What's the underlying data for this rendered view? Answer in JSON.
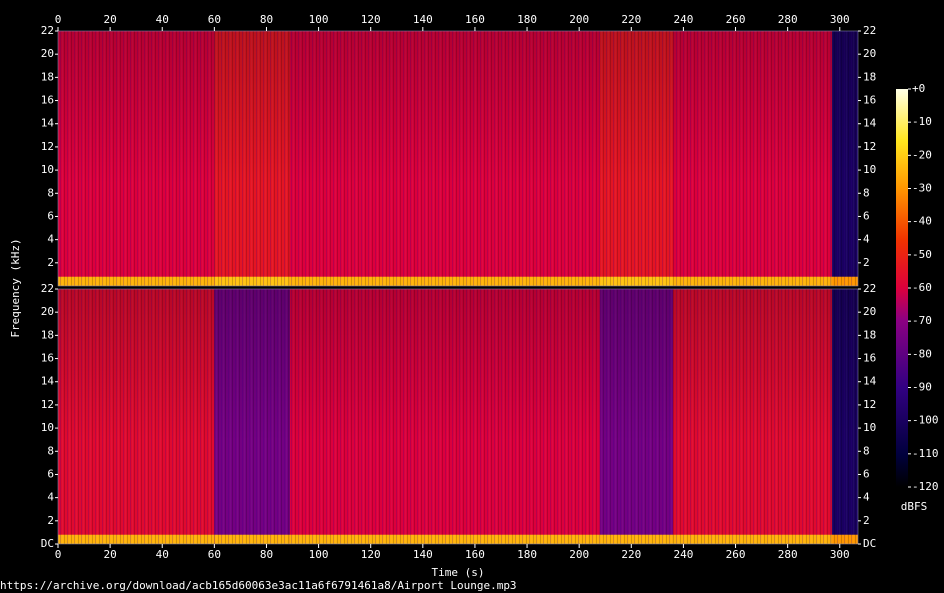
{
  "chart_data": {
    "type": "spectrogram",
    "x_label": "Time (s)",
    "y_label": "Frequency (kHz)",
    "xlim": [
      0,
      307
    ],
    "xticks": [
      0,
      20,
      40,
      60,
      80,
      100,
      120,
      140,
      160,
      180,
      200,
      220,
      240,
      260,
      280,
      300
    ],
    "ylim": [
      0,
      22
    ],
    "yticks": [
      {
        "value": 0,
        "label": "DC"
      },
      2,
      4,
      6,
      8,
      10,
      12,
      14,
      16,
      18,
      20,
      22
    ],
    "channels": [
      {
        "bins": [
          0,
          60,
          89,
          208,
          236,
          297,
          307
        ],
        "values": [
          -60,
          -54,
          -60,
          -54,
          -60,
          -100
        ],
        "bass_values": [
          -25,
          -22,
          -25,
          -22,
          -25,
          -30
        ]
      },
      {
        "bins": [
          0,
          60,
          89,
          208,
          236,
          297,
          307
        ],
        "values": [
          -57,
          -75,
          -60,
          -75,
          -57,
          -100
        ],
        "bass_values": [
          -25,
          -25,
          -25,
          -25,
          -25,
          -30
        ]
      }
    ],
    "colorbar": {
      "label": "dBFS",
      "lim": [
        -120,
        0
      ],
      "ticks": [
        {
          "value": 0,
          "label": "+0"
        },
        -10,
        -20,
        -30,
        -40,
        -50,
        -60,
        -70,
        -80,
        -90,
        -100,
        -110,
        -120
      ]
    },
    "source": "https://archive.org/download/acb165d60063e3ac11a6f6791461a8/Airport Lounge.mp3"
  }
}
